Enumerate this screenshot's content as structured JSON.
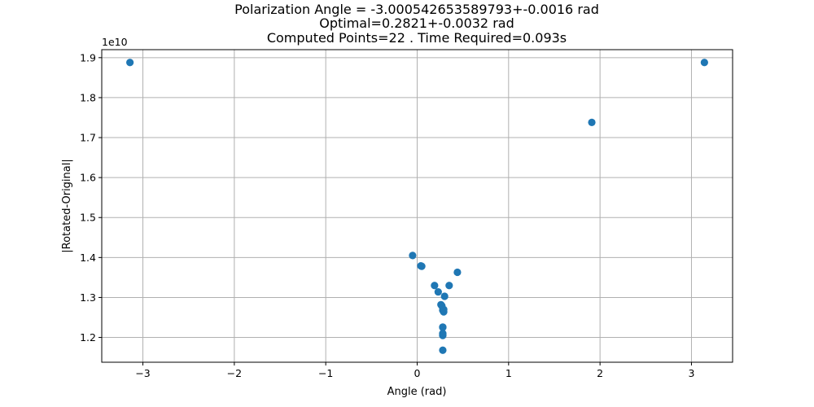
{
  "chart_data": {
    "type": "scatter",
    "title_lines": [
      "Polarization Angle = -3.000542653589793+-0.0016 rad",
      "Optimal=0.2821+-0.0032 rad",
      "Computed Points=22 . Time Required=0.093s"
    ],
    "xlabel": "Angle (rad)",
    "ylabel": "|Rotated-Original|",
    "y_offset_label": "1e10",
    "xlim": [
      -3.45,
      3.45
    ],
    "ylim": [
      1.138,
      1.92
    ],
    "x_ticks": [
      -3,
      -2,
      -1,
      0,
      1,
      2,
      3
    ],
    "x_tick_labels": [
      "−3",
      "−2",
      "−1",
      "0",
      "1",
      "2",
      "3"
    ],
    "y_ticks": [
      1.2,
      1.3,
      1.4,
      1.5,
      1.6,
      1.7,
      1.8,
      1.9
    ],
    "y_tick_labels": [
      "1.2",
      "1.3",
      "1.4",
      "1.5",
      "1.6",
      "1.7",
      "1.8",
      "1.9"
    ],
    "grid": true,
    "marker_color": "#1f77b4",
    "series": [
      {
        "x": [
          -3.14159,
          -0.05,
          0.04,
          0.19,
          0.23,
          0.26,
          0.28,
          0.28,
          0.28,
          0.28,
          0.27,
          0.29,
          0.3,
          0.35,
          0.44,
          1.91,
          3.14159,
          0.28,
          0.28,
          0.28,
          0.05,
          0.29
        ],
        "y": [
          1.888,
          1.405,
          1.379,
          1.33,
          1.314,
          1.282,
          1.225,
          1.21,
          1.205,
          1.168,
          1.279,
          1.264,
          1.303,
          1.33,
          1.363,
          1.738,
          1.888,
          1.268,
          1.226,
          1.207,
          1.378,
          1.27
        ]
      }
    ]
  }
}
